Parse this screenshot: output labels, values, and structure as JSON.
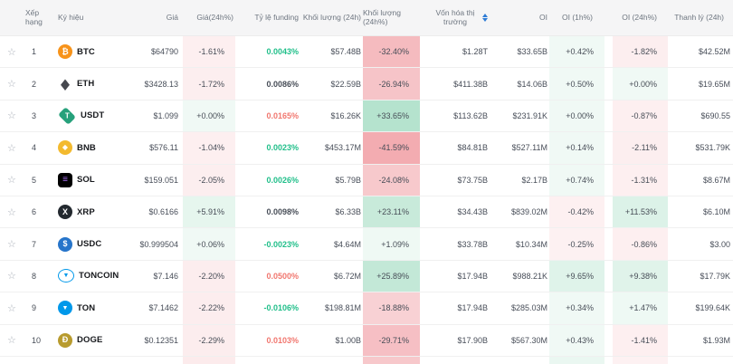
{
  "header": {
    "columns": [
      {
        "key": "rank",
        "label": "Xếp hạng"
      },
      {
        "key": "symbol",
        "label": "Ký hiệu"
      },
      {
        "key": "price",
        "label": "Giá"
      },
      {
        "key": "chg24",
        "label": "Giá(24h%)"
      },
      {
        "key": "funding",
        "label": "Tỷ lệ funding"
      },
      {
        "key": "vol",
        "label": "Khối lượng (24h)"
      },
      {
        "key": "volChg",
        "label": "Khối lượng (24h%)"
      },
      {
        "key": "mcap",
        "label": "Vốn hóa thị trường",
        "sortable": true
      },
      {
        "key": "oi",
        "label": "OI"
      },
      {
        "key": "oi1h",
        "label": "OI (1h%)"
      },
      {
        "key": "oi24h",
        "label": "OI (24h%)"
      },
      {
        "key": "liq",
        "label": "Thanh lý (24h)"
      }
    ]
  },
  "colors": {
    "pos_base": "49,177,117",
    "neg_base": "226,57,70",
    "funding_green": "#21bf8a",
    "funding_red": "#f1776f",
    "funding_dark": "#474d57",
    "sort_icon": "#2e7cd6",
    "header_bg": "#f5f5f6",
    "header_text": "#6e7680"
  },
  "rows": [
    {
      "rank": "1",
      "symbol": "BTC",
      "icon": {
        "name": "btc-icon",
        "shape": "circle",
        "bg": "#f7931a",
        "fg": "#ffffff",
        "glyph": "₿",
        "size": "9px"
      },
      "price": "$64790",
      "chg24": "-1.61%",
      "funding": "0.0043%",
      "funding_color": "green",
      "vol": "$57.48B",
      "volChg": "-32.40%",
      "mcap": "$1.28T",
      "oi": "$33.65B",
      "oi1h": "+0.42%",
      "oi24h": "-1.82%",
      "liq": "$42.52M"
    },
    {
      "rank": "2",
      "symbol": "ETH",
      "icon": {
        "name": "eth-icon",
        "shape": "plain",
        "bg": "transparent",
        "fg": "#46484f",
        "glyph": "◆",
        "size": "13px"
      },
      "price": "$3428.13",
      "chg24": "-1.72%",
      "funding": "0.0086%",
      "funding_color": "dark",
      "vol": "$22.59B",
      "volChg": "-26.94%",
      "mcap": "$411.38B",
      "oi": "$14.06B",
      "oi1h": "+0.50%",
      "oi24h": "+0.00%",
      "liq": "$19.65M"
    },
    {
      "rank": "3",
      "symbol": "USDT",
      "icon": {
        "name": "usdt-icon",
        "shape": "diamond",
        "bg": "#26a17b",
        "fg": "#ffffff",
        "glyph": "T",
        "size": "8px"
      },
      "price": "$1.099",
      "chg24": "+0.00%",
      "funding": "0.0165%",
      "funding_color": "red",
      "vol": "$16.26K",
      "volChg": "+33.65%",
      "mcap": "$113.62B",
      "oi": "$231.91K",
      "oi1h": "+0.00%",
      "oi24h": "-0.87%",
      "liq": "$690.55"
    },
    {
      "rank": "4",
      "symbol": "BNB",
      "icon": {
        "name": "bnb-icon",
        "shape": "circle",
        "bg": "#f3ba2f",
        "fg": "#ffffff",
        "glyph": "◆",
        "size": "8px"
      },
      "price": "$576.11",
      "chg24": "-1.04%",
      "funding": "0.0023%",
      "funding_color": "green",
      "vol": "$453.17M",
      "volChg": "-41.59%",
      "mcap": "$84.81B",
      "oi": "$527.11M",
      "oi1h": "+0.14%",
      "oi24h": "-2.11%",
      "liq": "$531.79K"
    },
    {
      "rank": "5",
      "symbol": "SOL",
      "icon": {
        "name": "sol-icon",
        "shape": "square",
        "bg": "#000000",
        "fg": "#a96ef5",
        "glyph": "≡",
        "size": "10px"
      },
      "price": "$159.051",
      "chg24": "-2.05%",
      "funding": "0.0026%",
      "funding_color": "green",
      "vol": "$5.79B",
      "volChg": "-24.08%",
      "mcap": "$73.75B",
      "oi": "$2.17B",
      "oi1h": "+0.74%",
      "oi24h": "-1.31%",
      "liq": "$8.67M"
    },
    {
      "rank": "6",
      "symbol": "XRP",
      "icon": {
        "name": "xrp-icon",
        "shape": "circle",
        "bg": "#23292f",
        "fg": "#ffffff",
        "glyph": "X",
        "size": "9px"
      },
      "price": "$0.6166",
      "chg24": "+5.91%",
      "funding": "0.0098%",
      "funding_color": "dark",
      "vol": "$6.33B",
      "volChg": "+23.11%",
      "mcap": "$34.43B",
      "oi": "$839.02M",
      "oi1h": "-0.42%",
      "oi24h": "+11.53%",
      "liq": "$6.10M"
    },
    {
      "rank": "7",
      "symbol": "USDC",
      "icon": {
        "name": "usdc-icon",
        "shape": "circle",
        "bg": "#2775ca",
        "fg": "#ffffff",
        "glyph": "$",
        "size": "9px"
      },
      "price": "$0.999504",
      "chg24": "+0.06%",
      "funding": "-0.0023%",
      "funding_color": "green",
      "vol": "$4.64M",
      "volChg": "+1.09%",
      "mcap": "$33.78B",
      "oi": "$10.34M",
      "oi1h": "-0.25%",
      "oi24h": "-0.86%",
      "liq": "$3.00"
    },
    {
      "rank": "8",
      "symbol": "TONCOIN",
      "icon": {
        "name": "toncoin-icon",
        "shape": "ring",
        "bg": "#ffffff",
        "fg": "#0098ea",
        "glyph": "▼",
        "size": "7px"
      },
      "price": "$7.146",
      "chg24": "-2.20%",
      "funding": "0.0500%",
      "funding_color": "red",
      "vol": "$6.72M",
      "volChg": "+25.89%",
      "mcap": "$17.94B",
      "oi": "$988.21K",
      "oi1h": "+9.65%",
      "oi24h": "+9.38%",
      "liq": "$17.79K"
    },
    {
      "rank": "9",
      "symbol": "TON",
      "icon": {
        "name": "ton-icon",
        "shape": "circle",
        "bg": "#0098ea",
        "fg": "#ffffff",
        "glyph": "▼",
        "size": "7px"
      },
      "price": "$7.1462",
      "chg24": "-2.22%",
      "funding": "-0.0106%",
      "funding_color": "green",
      "vol": "$198.81M",
      "volChg": "-18.88%",
      "mcap": "$17.94B",
      "oi": "$285.03M",
      "oi1h": "+0.34%",
      "oi24h": "+1.47%",
      "liq": "$199.64K"
    },
    {
      "rank": "10",
      "symbol": "DOGE",
      "icon": {
        "name": "doge-icon",
        "shape": "circle",
        "bg": "#b89b2e",
        "fg": "#ffffff",
        "glyph": "Ð",
        "size": "9px"
      },
      "price": "$0.12351",
      "chg24": "-2.29%",
      "funding": "0.0103%",
      "funding_color": "red",
      "vol": "$1.00B",
      "volChg": "-29.71%",
      "mcap": "$17.90B",
      "oi": "$567.30M",
      "oi1h": "+0.43%",
      "oi24h": "-1.41%",
      "liq": "$1.93M"
    }
  ],
  "partial_row": {
    "chg24": "rgba(226,57,70,0.10)",
    "volChg": "rgba(226,57,70,0.28)",
    "oi1h": "rgba(49,177,117,0.10)",
    "oi24h": "rgba(226,57,70,0.07)"
  }
}
